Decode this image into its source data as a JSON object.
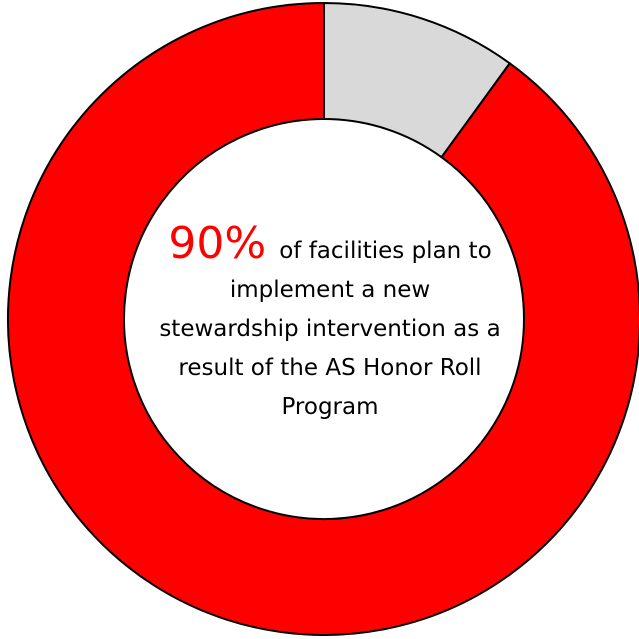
{
  "chart_data": {
    "type": "donut",
    "values": [
      90,
      10
    ],
    "value_labels": [
      "90%",
      null
    ],
    "colors": [
      "#ff0000",
      "#d9d9d9"
    ],
    "annotation_lines": [
      "of facilities plan to",
      "implement a new",
      "stewardship intervention as a",
      "result of the AS Honor Roll",
      "Program"
    ]
  }
}
